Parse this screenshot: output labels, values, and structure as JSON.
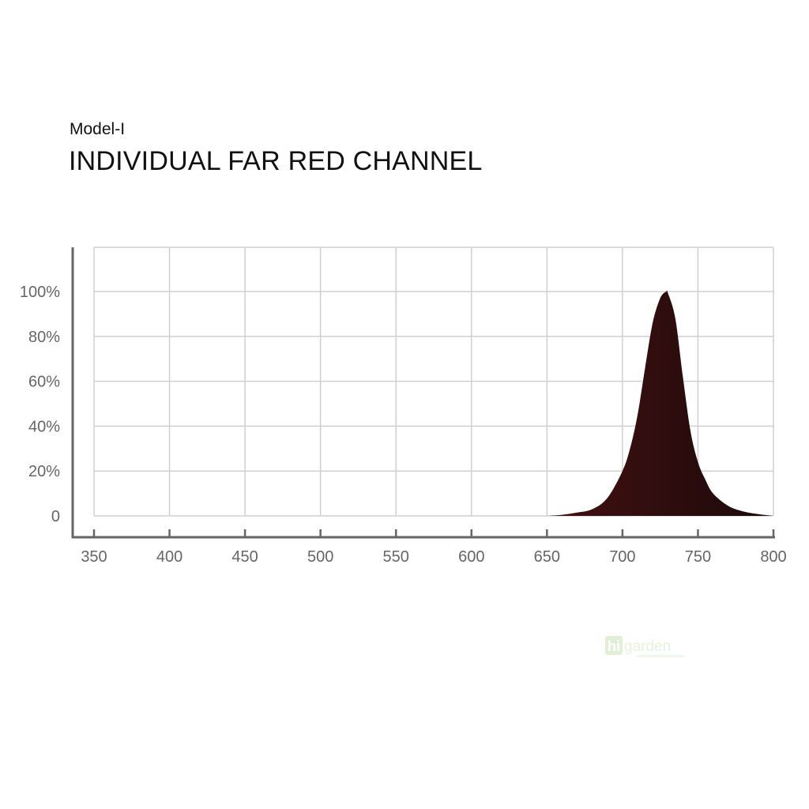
{
  "chart_data": {
    "type": "area",
    "subtitle": "Model-I",
    "title": "INDIVIDUAL FAR RED CHANNEL",
    "xlabel": "",
    "ylabel": "",
    "xlim": [
      350,
      800
    ],
    "ylim": [
      0,
      120
    ],
    "x_ticks": [
      "350",
      "400",
      "450",
      "500",
      "550",
      "600",
      "650",
      "700",
      "750",
      "800"
    ],
    "y_ticks": [
      "0",
      "20%",
      "40%",
      "60%",
      "80%",
      "100%"
    ],
    "grid": true,
    "x": [
      650,
      660,
      670,
      680,
      690,
      700,
      705,
      710,
      715,
      720,
      725,
      729,
      730,
      735,
      740,
      745,
      750,
      755,
      760,
      770,
      780,
      790,
      800
    ],
    "values": [
      0,
      0.5,
      1.5,
      3,
      8,
      20,
      30,
      45,
      66,
      86,
      97,
      100,
      99.5,
      88,
      62,
      38,
      24,
      16,
      10,
      4.5,
      2,
      0.8,
      0
    ],
    "fill_gradient": [
      "#9a1c1f",
      "#1a0a0a"
    ],
    "watermark": "higarden"
  }
}
